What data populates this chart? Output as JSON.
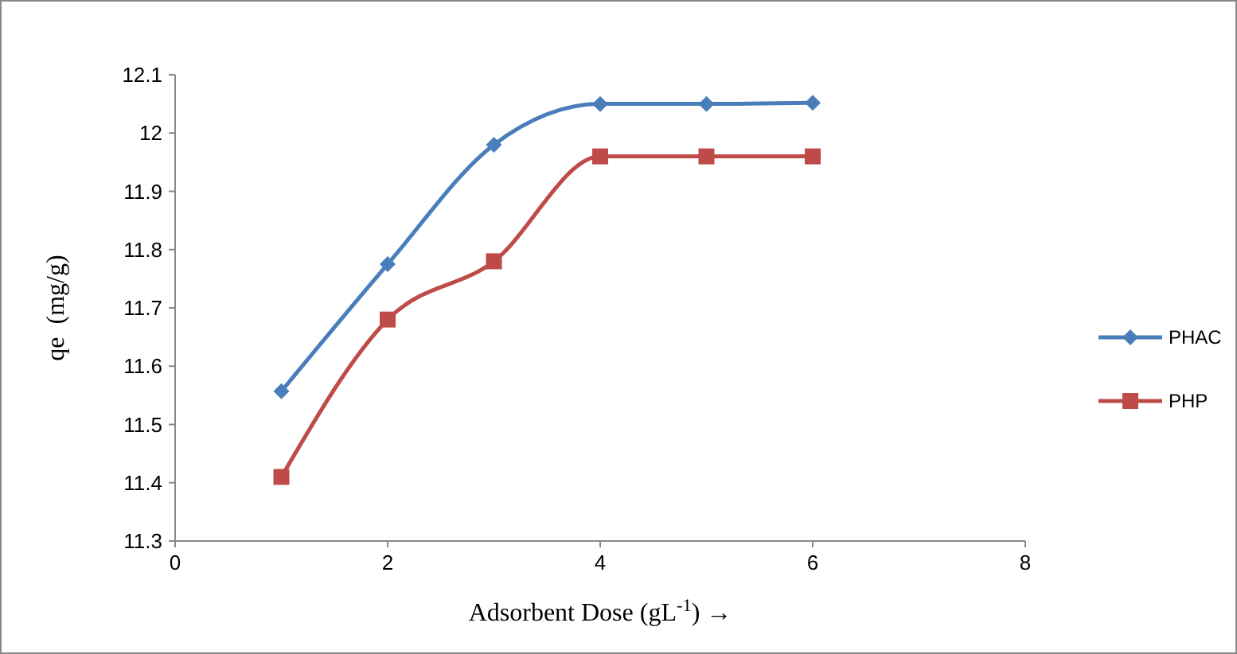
{
  "chart_data": {
    "type": "line",
    "xlabel": "Adsorbent Dose (gL$^{-1}$) →",
    "ylabel": "qe  (mg/g)",
    "x": [
      1,
      2,
      3,
      4,
      5,
      6
    ],
    "series": [
      {
        "name": "PHAC",
        "color": "#4a7ebb",
        "values": [
          11.557,
          11.775,
          11.98,
          12.05,
          12.05,
          12.052
        ],
        "marker": "diamond"
      },
      {
        "name": "PHP",
        "color": "#be4b48",
        "values": [
          11.41,
          11.68,
          11.78,
          11.96,
          11.96,
          11.96
        ],
        "marker": "square"
      }
    ],
    "xlim": [
      0,
      8
    ],
    "xticks": [
      0,
      2,
      4,
      6,
      8
    ],
    "ylim": [
      11.3,
      12.1
    ],
    "yticks": [
      11.3,
      11.4,
      11.5,
      11.6,
      11.7,
      11.8,
      11.9,
      12,
      12.1
    ],
    "grid": false,
    "legend": "right",
    "line_style": "solid"
  }
}
